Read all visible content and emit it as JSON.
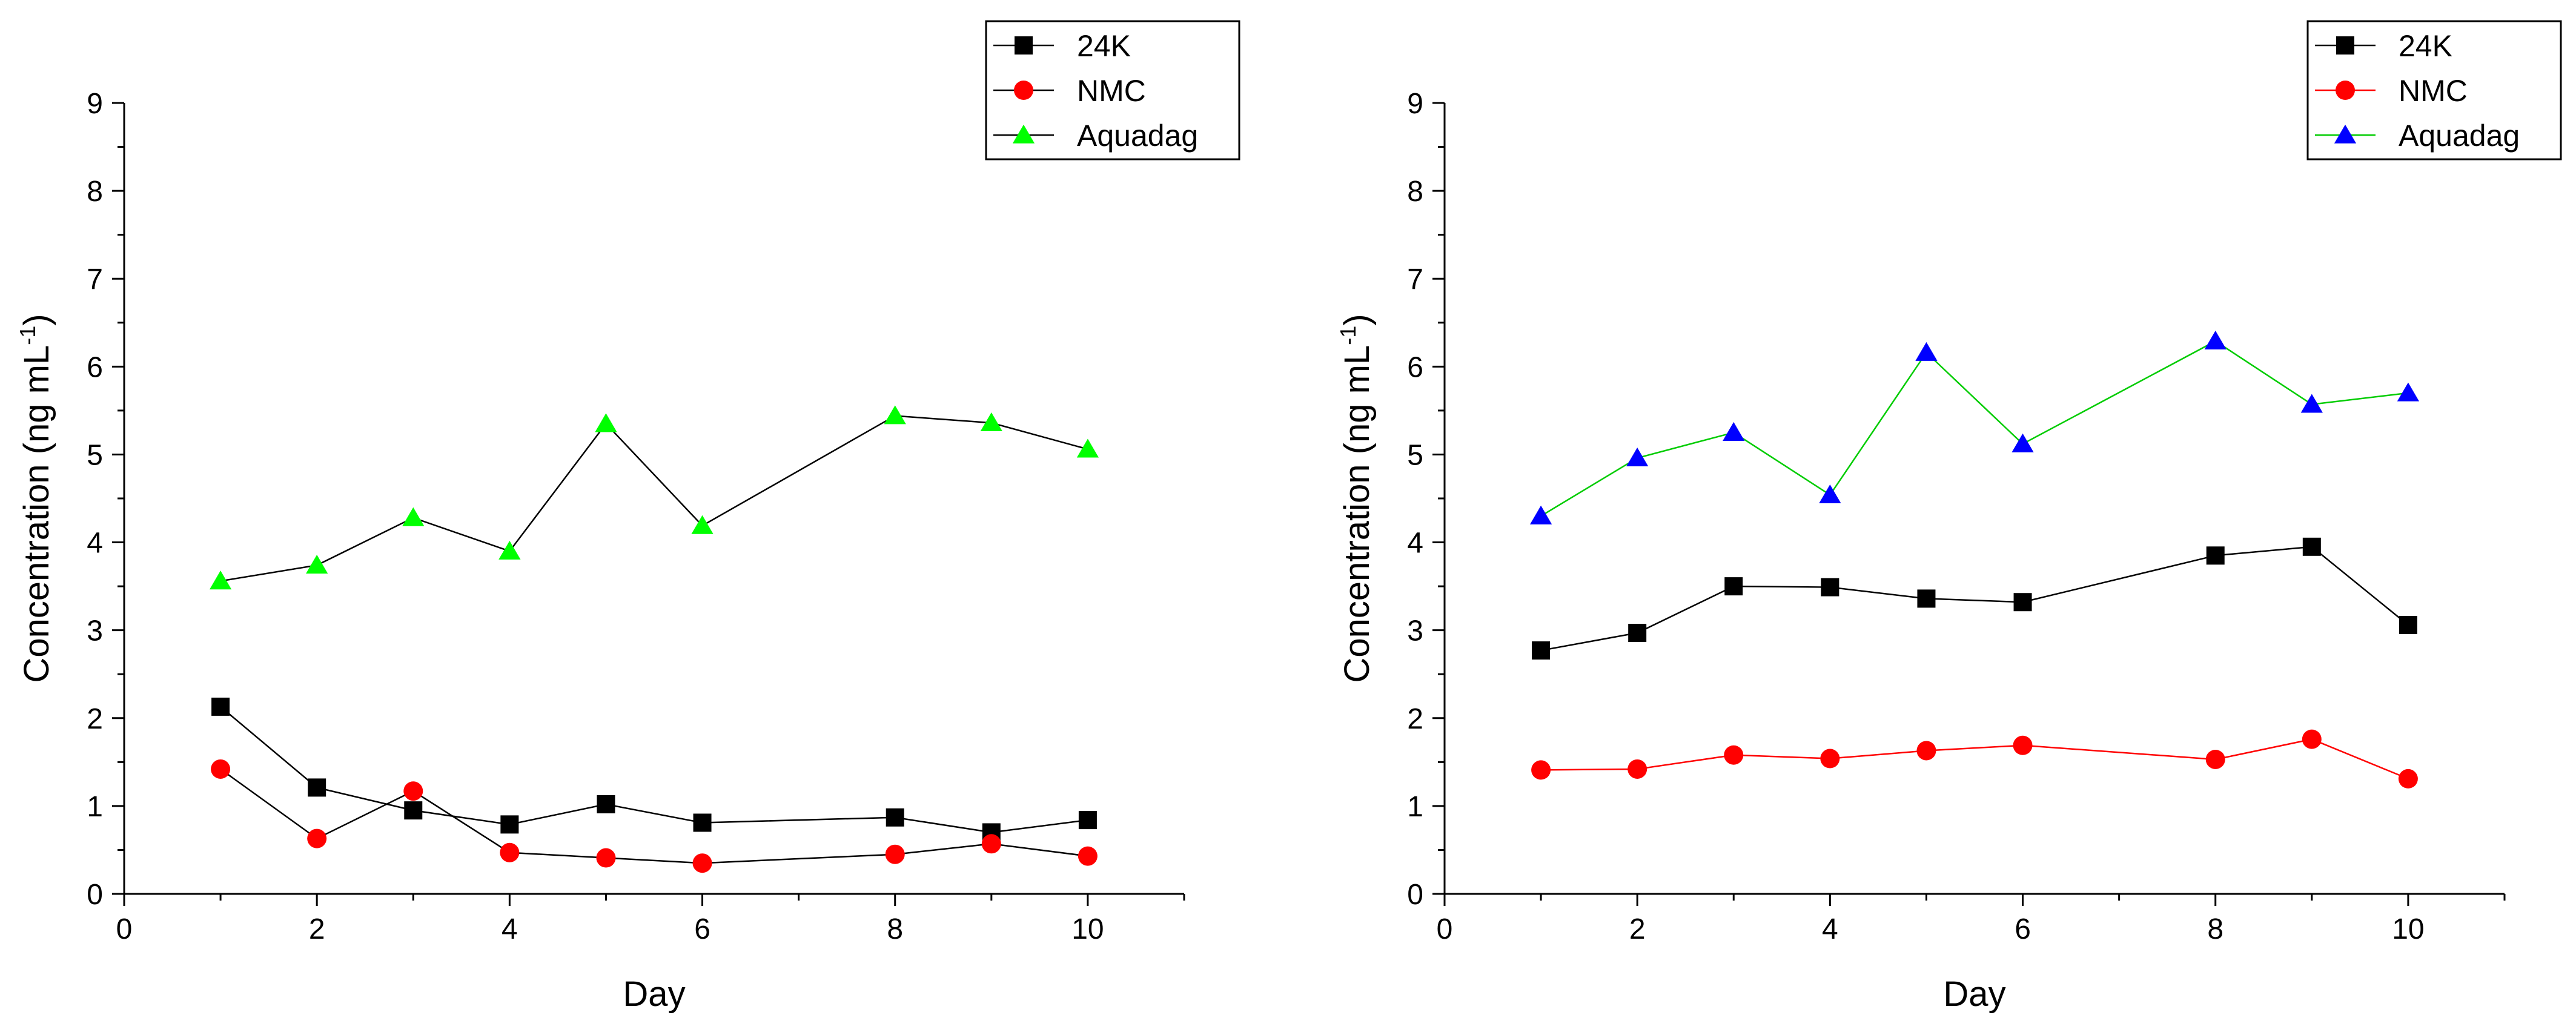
{
  "chart_data": [
    {
      "type": "line",
      "title": "",
      "xlabel": "Day",
      "ylabel": "Concentration (ng mL",
      "ylabel_superscript": "-1",
      "ylabel_close": ")",
      "xlim": [
        0,
        11
      ],
      "ylim": [
        0,
        9
      ],
      "xticks": [
        0,
        2,
        4,
        6,
        8,
        10
      ],
      "yticks": [
        0,
        1,
        2,
        3,
        4,
        5,
        6,
        7,
        8,
        9
      ],
      "grid": false,
      "legend_position": "top-right, above plot",
      "x": [
        1,
        2,
        3,
        4,
        5,
        6,
        8,
        9,
        10
      ],
      "series": [
        {
          "name": "24K",
          "marker": "square",
          "color": "#000000",
          "line_color": "#000000",
          "values": [
            2.13,
            1.21,
            0.95,
            0.79,
            1.02,
            0.81,
            0.87,
            0.7,
            0.84
          ]
        },
        {
          "name": "NMC",
          "marker": "circle",
          "color": "#ff0000",
          "line_color": "#000000",
          "values": [
            1.42,
            0.63,
            1.17,
            0.47,
            0.41,
            0.35,
            0.45,
            0.57,
            0.43
          ]
        },
        {
          "name": "Aquadag",
          "marker": "triangle",
          "color": "#00ff00",
          "line_color": "#000000",
          "values": [
            3.56,
            3.74,
            4.28,
            3.9,
            5.35,
            4.19,
            5.44,
            5.36,
            5.06
          ]
        }
      ]
    },
    {
      "type": "line",
      "title": "",
      "xlabel": "Day",
      "ylabel": "Concentration (ng mL",
      "ylabel_superscript": "-1",
      "ylabel_close": ")",
      "xlim": [
        0,
        11
      ],
      "ylim": [
        0,
        9
      ],
      "xticks": [
        0,
        2,
        4,
        6,
        8,
        10
      ],
      "yticks": [
        0,
        1,
        2,
        3,
        4,
        5,
        6,
        7,
        8,
        9
      ],
      "grid": false,
      "legend_position": "top-right, above plot",
      "x": [
        1,
        2,
        3,
        4,
        5,
        6,
        8,
        9,
        10
      ],
      "series": [
        {
          "name": "24K",
          "marker": "square",
          "color": "#000000",
          "line_color": "#000000",
          "values": [
            2.77,
            2.97,
            3.5,
            3.49,
            3.36,
            3.32,
            3.85,
            3.95,
            3.06
          ]
        },
        {
          "name": "NMC",
          "marker": "circle",
          "color": "#ff0000",
          "line_color": "#ff0000",
          "values": [
            1.41,
            1.42,
            1.58,
            1.54,
            1.63,
            1.69,
            1.53,
            1.76,
            1.31
          ]
        },
        {
          "name": "Aquadag",
          "marker": "triangle",
          "color": "#0000ff",
          "line_color": "#00cc00",
          "values": [
            4.3,
            4.96,
            5.25,
            4.54,
            6.16,
            5.12,
            6.29,
            5.57,
            5.7
          ]
        }
      ]
    }
  ]
}
